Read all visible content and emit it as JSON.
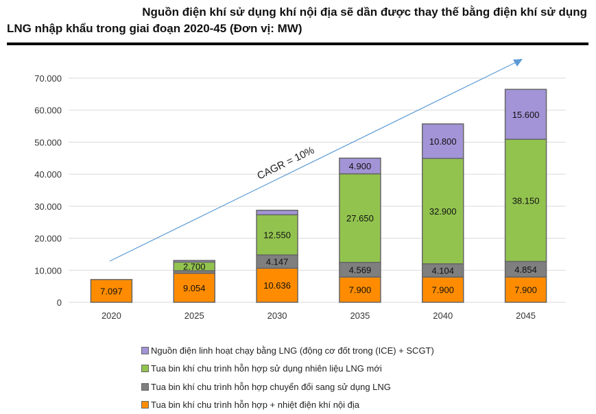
{
  "title": {
    "line1": "Nguồn điện khí sử dụng khí nội địa sẽ dần được thay thế bằng điện khí sử dụng",
    "line2": "LNG nhập khẩu trong giai đoạn 2020-45 (Đơn vị: MW)"
  },
  "chart_data": {
    "type": "bar",
    "stacked": true,
    "ylim": [
      0,
      70000
    ],
    "yticks": [
      "0",
      "10.000",
      "20.000",
      "30.000",
      "40.000",
      "50.000",
      "60.000",
      "70.000"
    ],
    "categories": [
      "2020",
      "2025",
      "2030",
      "2035",
      "2040",
      "2045"
    ],
    "series": [
      {
        "name": "Tua bin khí chu trình hỗn hợp + nhiệt điện khí nội địa",
        "color": "#FF8C00",
        "values": [
          7097,
          9054,
          10636,
          7900,
          7900,
          7900
        ],
        "labels": [
          "7.097",
          "9.054",
          "10.636",
          "7.900",
          "7.900",
          "7.900"
        ]
      },
      {
        "name": "Tua bin khí chu trình hỗn hợp chuyển đổi sang sử dụng LNG",
        "color": "#7F7F7F",
        "values": [
          0,
          800,
          4147,
          4569,
          4104,
          4854
        ],
        "labels": [
          "",
          "",
          "4.147",
          "4.569",
          "4.104",
          "4.854"
        ]
      },
      {
        "name": "Tua bin khí chu trình hỗn hợp sử dụng nhiên liệu LNG mới",
        "color": "#92C34F",
        "values": [
          0,
          2700,
          12550,
          27650,
          32900,
          38150
        ],
        "labels": [
          "",
          "2.700",
          "12.550",
          "27.650",
          "32.900",
          "38.150"
        ]
      },
      {
        "name": "Nguồn điện linh hoạt chạy bằng LNG (động cơ đốt trong (ICE) + SCGT)",
        "color": "#A294D6",
        "values": [
          0,
          500,
          1400,
          4900,
          10800,
          15600
        ],
        "labels": [
          "",
          "",
          "",
          "4.900",
          "10.800",
          "15.600"
        ]
      }
    ],
    "annotation": "CAGR = 10%",
    "grid": true,
    "legend": "bottom"
  }
}
